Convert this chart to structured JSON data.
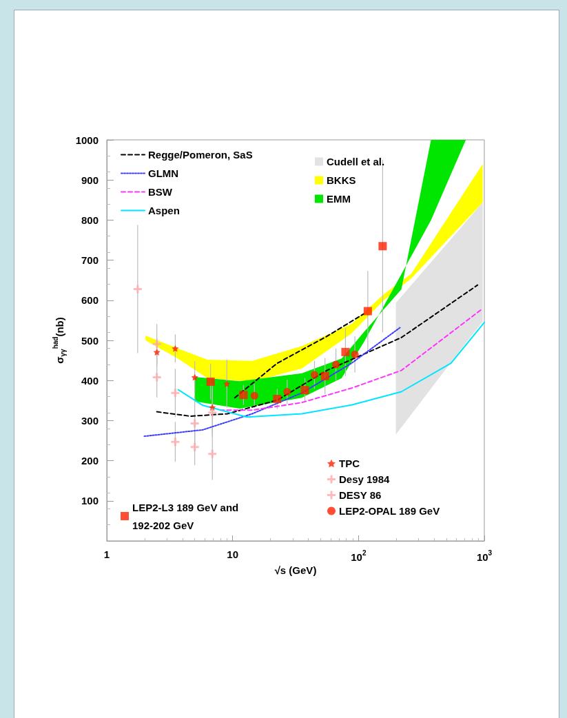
{
  "chart_data": {
    "type": "line",
    "xlabel": "√s (GeV)",
    "ylabel": "σ$_{γγ}$$^{had}$(nb)",
    "log": "x",
    "xlim": [
      1,
      1000
    ],
    "xticks": [
      1,
      10,
      {
        "value": 100,
        "label": "10$^{2}$"
      },
      {
        "value": 1000,
        "label": "10$^{3}$"
      }
    ],
    "ylim": [
      0,
      1000
    ],
    "yticks": [
      100,
      200,
      300,
      400,
      500,
      600,
      700,
      800,
      900,
      1000
    ],
    "grid": false,
    "legend": "top left",
    "series": [
      {
        "type": "area",
        "name": "Cudell et al.",
        "color": "#e2e2e2",
        "x": [
          198,
          782,
          971
        ],
        "values": [
          null,
          null,
          null
        ],
        "lower": [
          265,
          510,
          547
        ],
        "upper": [
          593,
          810,
          844
        ]
      },
      {
        "type": "area",
        "name": "BKKS",
        "color": "#ffff00",
        "x": [
          2.03,
          3.66,
          6.3,
          14.3,
          35.5,
          88,
          159,
          262,
          971
        ],
        "values": [
          null,
          null,
          null,
          null,
          null,
          null,
          null,
          null,
          null
        ],
        "lower": [
          500,
          455,
          406,
          397,
          430,
          517,
          600,
          654,
          844
        ],
        "upper": [
          512,
          480,
          452,
          449,
          486,
          541,
          615,
          666,
          940
        ]
      },
      {
        "type": "area",
        "name": "EMM",
        "color": "#00e600",
        "x": [
          5,
          11.4,
          35.5,
          73.5,
          110,
          219,
          377,
          713
        ],
        "values": [
          null,
          null,
          null,
          null,
          null,
          null,
          null,
          null
        ],
        "lower": [
          348,
          330,
          357,
          406,
          495,
          665,
          800,
          1000
        ],
        "upper": [
          409,
          398,
          418,
          455,
          520,
          627,
          1000,
          1000
        ]
      },
      {
        "name": "Regge/Pomeron, SaS",
        "color": "#000000",
        "line_style": "dashed",
        "marker": "none",
        "x": [
          2.5,
          4.6,
          9.1,
          22.6,
          56,
          219,
          884
        ],
        "values": [
          322,
          311,
          317,
          351,
          425,
          507,
          638
        ]
      },
      {
        "color": "#000000",
        "line_style": "dashed",
        "marker": "none",
        "x": [
          10.4,
          22.6,
          56,
          110
        ],
        "values": [
          357,
          443,
          510,
          566
        ]
      },
      {
        "name": "GLMN",
        "color": "#3b3bff",
        "line_style": "dotted",
        "marker": "none",
        "x": [
          1.99,
          5.8,
          14.3,
          35.5,
          88,
          214
        ],
        "values": [
          261,
          277,
          317,
          369,
          443,
          532
        ]
      },
      {
        "name": "BSW",
        "color": "#ff33ff",
        "line_style": "dashed",
        "marker": "none",
        "x": [
          7.95,
          14.3,
          35.5,
          88,
          219,
          957
        ],
        "values": [
          326,
          326,
          345,
          381,
          425,
          578
        ]
      },
      {
        "name": "Aspen",
        "color": "#00e5ff",
        "line_style": "solid",
        "marker": "none",
        "x": [
          3.7,
          5.8,
          13,
          35.5,
          88,
          219,
          543,
          1000
        ],
        "values": [
          377,
          338,
          309,
          317,
          339,
          372,
          443,
          545
        ]
      },
      {
        "type": "scatter",
        "name": "LEP2-L3 189 GeV and 192-202 GeV",
        "color": "#ff2200",
        "marker": "square",
        "x": [
          6.68,
          12.2,
          22.6,
          37.5,
          54.2,
          78.8,
          118.6,
          155.6
        ],
        "values": [
          397,
          364,
          354,
          376,
          411,
          471,
          573,
          735
        ],
        "errors": [
          45,
          25,
          25,
          30,
          45,
          60,
          100,
          215
        ]
      },
      {
        "type": "scatter",
        "name": "TPC",
        "color": "#ff2200",
        "marker": "star",
        "x": [
          2.5,
          3.5,
          5,
          6.9,
          9
        ],
        "values": [
          471,
          480,
          408,
          333,
          392
        ],
        "errors": [
          35,
          35,
          40,
          60,
          60
        ]
      },
      {
        "type": "scatter",
        "name": "Desy 1984",
        "color": "#ffaaaa",
        "marker": "cross",
        "x": [
          1.76,
          2.5,
          3.5,
          5,
          6.9
        ],
        "values": [
          628,
          491,
          369,
          293,
          217
        ],
        "errors": [
          160,
          50,
          60,
          70,
          65
        ]
      },
      {
        "type": "scatter",
        "name": "DESY 86",
        "color": "#ffaaaa",
        "marker": "cross",
        "x": [
          2.5,
          3.5,
          5,
          6.9
        ],
        "values": [
          408,
          247,
          234,
          320
        ],
        "errors": [
          50,
          50,
          45,
          60
        ]
      },
      {
        "type": "scatter",
        "name": "LEP2-OPAL 189 GeV",
        "color": "#ff2200",
        "marker": "circle",
        "x": [
          14.9,
          27.1,
          44.7,
          66.2,
          93.6
        ],
        "values": [
          362,
          372,
          414,
          440,
          465
        ],
        "errors": [
          30,
          30,
          35,
          40,
          45
        ]
      }
    ]
  }
}
